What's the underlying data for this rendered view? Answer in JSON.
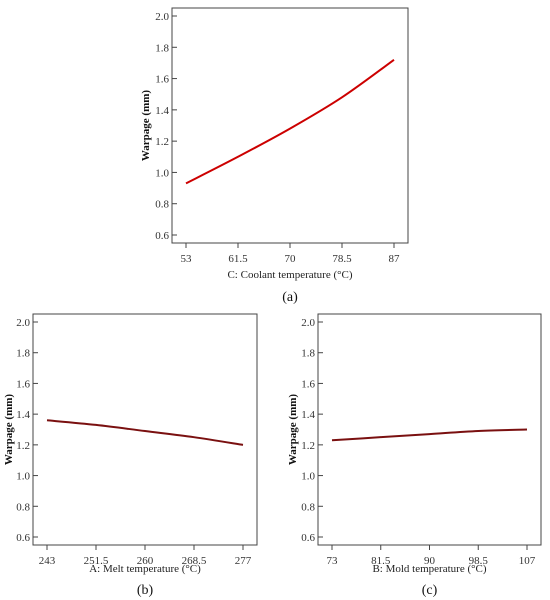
{
  "chart_data": [
    {
      "id": "a",
      "type": "line",
      "panel_label": "(a)",
      "title": "",
      "xlabel": "C: Coolant temperature (°C)",
      "ylabel": "Warpage (mm)",
      "xticks": [
        "53",
        "61.5",
        "70",
        "78.5",
        "87"
      ],
      "xlim": [
        53,
        87
      ],
      "yticks": [
        "0.6",
        "0.8",
        "1.0",
        "1.2",
        "1.4",
        "1.6",
        "1.8",
        "2.0"
      ],
      "ylim": [
        0.6,
        2.0
      ],
      "series": [
        {
          "color": "#cc0000",
          "x": [
            53,
            61.5,
            70,
            78.5,
            87
          ],
          "y": [
            0.93,
            1.1,
            1.28,
            1.48,
            1.72
          ]
        }
      ],
      "grid": false
    },
    {
      "id": "b",
      "type": "line",
      "panel_label": "(b)",
      "title": "",
      "xlabel": "A: Melt temperature (°C)",
      "ylabel": "Warpage (mm)",
      "xticks": [
        "243",
        "251.5",
        "260",
        "268.5",
        "277"
      ],
      "xlim": [
        243,
        277
      ],
      "yticks": [
        "0.6",
        "0.8",
        "1.0",
        "1.2",
        "1.4",
        "1.6",
        "1.8",
        "2.0"
      ],
      "ylim": [
        0.6,
        2.0
      ],
      "series": [
        {
          "color": "#7a1010",
          "x": [
            243,
            251.5,
            260,
            268.5,
            277
          ],
          "y": [
            1.36,
            1.33,
            1.29,
            1.25,
            1.2
          ]
        }
      ],
      "grid": false
    },
    {
      "id": "c",
      "type": "line",
      "panel_label": "(c)",
      "title": "",
      "xlabel": "B: Mold temperature (°C)",
      "ylabel": "Warpage (mm)",
      "xticks": [
        "73",
        "81.5",
        "90",
        "98.5",
        "107"
      ],
      "xlim": [
        73,
        107
      ],
      "yticks": [
        "0.6",
        "0.8",
        "1.0",
        "1.2",
        "1.4",
        "1.6",
        "1.8",
        "2.0"
      ],
      "ylim": [
        0.6,
        2.0
      ],
      "series": [
        {
          "color": "#7a1010",
          "x": [
            73,
            81.5,
            90,
            98.5,
            107
          ],
          "y": [
            1.23,
            1.25,
            1.27,
            1.29,
            1.3
          ]
        }
      ],
      "grid": false
    }
  ]
}
